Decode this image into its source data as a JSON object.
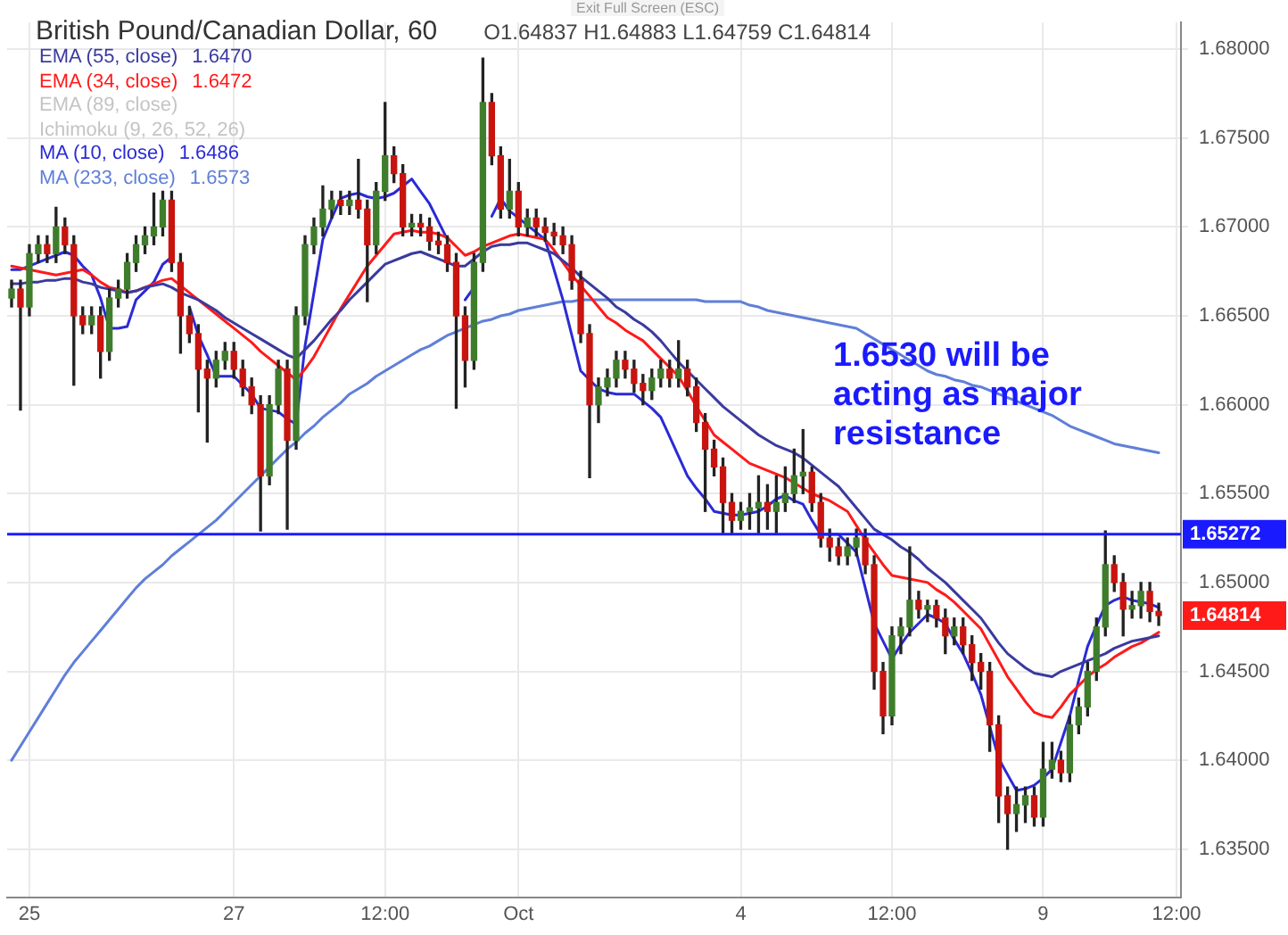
{
  "chart_data": {
    "type": "candlestick",
    "title": "British Pound/Canadian Dollar, 60",
    "subtitle": "O1.64837 H1.64883 L1.64759 C1.64814",
    "categories": [
      null,
      null,
      "25",
      null,
      null,
      null,
      null,
      null,
      null,
      null,
      null,
      null,
      null,
      null,
      null,
      null,
      null,
      null,
      null,
      null,
      null,
      null,
      null,
      null,
      null,
      "27",
      null,
      null,
      null,
      null,
      null,
      null,
      null,
      null,
      null,
      null,
      null,
      null,
      null,
      null,
      null,
      null,
      "12:00",
      null,
      null,
      null,
      null,
      null,
      null,
      null,
      null,
      null,
      null,
      null,
      null,
      null,
      null,
      "Oct",
      null,
      null,
      null,
      null,
      null,
      null,
      null,
      null,
      null,
      null,
      null,
      null,
      null,
      null,
      null,
      null,
      null,
      null,
      null,
      null,
      null,
      null,
      null,
      null,
      "4",
      null,
      null,
      null,
      null,
      null,
      null,
      null,
      null,
      null,
      null,
      null,
      null,
      null,
      null,
      null,
      null,
      "12:00",
      null,
      null,
      null,
      null,
      null,
      null,
      null,
      null,
      null,
      null,
      null,
      null,
      null,
      null,
      null,
      null,
      "9",
      null,
      null,
      null,
      null,
      null,
      null,
      null,
      null,
      null,
      null,
      null,
      null,
      null,
      null,
      "12:00"
    ],
    "ohlc": [
      [
        1.666,
        1.667,
        1.6655,
        1.6665
      ],
      [
        1.6665,
        1.667,
        1.6597,
        1.6655
      ],
      [
        1.6655,
        1.669,
        1.665,
        1.6685
      ],
      [
        1.6685,
        1.6695,
        1.668,
        1.669
      ],
      [
        1.669,
        1.6695,
        1.668,
        1.6685
      ],
      [
        1.6685,
        1.6711,
        1.668,
        1.67
      ],
      [
        1.67,
        1.6705,
        1.6685,
        1.669
      ],
      [
        1.669,
        1.6695,
        1.6611,
        1.665
      ],
      [
        1.665,
        1.6655,
        1.664,
        1.6645
      ],
      [
        1.6645,
        1.6655,
        1.664,
        1.665
      ],
      [
        1.665,
        1.6655,
        1.6615,
        1.663
      ],
      [
        1.663,
        1.6665,
        1.6625,
        1.666
      ],
      [
        1.666,
        1.667,
        1.6655,
        1.6665
      ],
      [
        1.6665,
        1.6685,
        1.666,
        1.668
      ],
      [
        1.668,
        1.6695,
        1.6675,
        1.669
      ],
      [
        1.669,
        1.67,
        1.6685,
        1.6695
      ],
      [
        1.6695,
        1.6719,
        1.669,
        1.67
      ],
      [
        1.67,
        1.672,
        1.6695,
        1.6715
      ],
      [
        1.6715,
        1.672,
        1.6675,
        1.668
      ],
      [
        1.668,
        1.6685,
        1.6629,
        1.665
      ],
      [
        1.665,
        1.6655,
        1.6635,
        1.664
      ],
      [
        1.664,
        1.6645,
        1.6596,
        1.662
      ],
      [
        1.662,
        1.6625,
        1.6579,
        1.6615
      ],
      [
        1.6615,
        1.663,
        1.661,
        1.6625
      ],
      [
        1.6625,
        1.6635,
        1.662,
        1.663
      ],
      [
        1.663,
        1.6635,
        1.6615,
        1.662
      ],
      [
        1.662,
        1.6625,
        1.6605,
        1.661
      ],
      [
        1.661,
        1.6615,
        1.6595,
        1.66
      ],
      [
        1.66,
        1.6605,
        1.6529,
        1.656
      ],
      [
        1.656,
        1.6605,
        1.6555,
        1.66
      ],
      [
        1.66,
        1.6625,
        1.6595,
        1.662
      ],
      [
        1.662,
        1.6625,
        1.653,
        1.658
      ],
      [
        1.658,
        1.6655,
        1.6575,
        1.665
      ],
      [
        1.665,
        1.6695,
        1.6645,
        1.669
      ],
      [
        1.669,
        1.6705,
        1.6685,
        1.67
      ],
      [
        1.67,
        1.6723,
        1.6695,
        1.671
      ],
      [
        1.671,
        1.672,
        1.6705,
        1.6715
      ],
      [
        1.6715,
        1.672,
        1.6707,
        1.6712
      ],
      [
        1.6712,
        1.672,
        1.6707,
        1.6715
      ],
      [
        1.6715,
        1.6738,
        1.6705,
        1.671
      ],
      [
        1.671,
        1.6715,
        1.6658,
        1.669
      ],
      [
        1.669,
        1.6725,
        1.6685,
        1.672
      ],
      [
        1.672,
        1.677,
        1.6715,
        1.674
      ],
      [
        1.674,
        1.6745,
        1.6725,
        1.673
      ],
      [
        1.673,
        1.6735,
        1.6695,
        1.67
      ],
      [
        1.67,
        1.6707,
        1.6695,
        1.6702
      ],
      [
        1.6702,
        1.6707,
        1.6695,
        1.67
      ],
      [
        1.67,
        1.6705,
        1.6687,
        1.6692
      ],
      [
        1.6692,
        1.6697,
        1.6685,
        1.669
      ],
      [
        1.669,
        1.6695,
        1.6675,
        1.668
      ],
      [
        1.668,
        1.6685,
        1.6598,
        1.665
      ],
      [
        1.665,
        1.6655,
        1.661,
        1.6625
      ],
      [
        1.6625,
        1.6685,
        1.662,
        1.668
      ],
      [
        1.668,
        1.6795,
        1.6675,
        1.677
      ],
      [
        1.677,
        1.6775,
        1.6735,
        1.674
      ],
      [
        1.674,
        1.6745,
        1.6705,
        1.671
      ],
      [
        1.671,
        1.6738,
        1.6705,
        1.672
      ],
      [
        1.672,
        1.6725,
        1.6695,
        1.67
      ],
      [
        1.67,
        1.671,
        1.6695,
        1.6705
      ],
      [
        1.6705,
        1.671,
        1.6695,
        1.67
      ],
      [
        1.67,
        1.6705,
        1.6692,
        1.6697
      ],
      [
        1.6697,
        1.6702,
        1.669,
        1.6695
      ],
      [
        1.6695,
        1.67,
        1.6685,
        1.669
      ],
      [
        1.669,
        1.6695,
        1.6665,
        1.667
      ],
      [
        1.667,
        1.6675,
        1.6635,
        1.664
      ],
      [
        1.664,
        1.6645,
        1.6559,
        1.66
      ],
      [
        1.66,
        1.6615,
        1.659,
        1.661
      ],
      [
        1.661,
        1.662,
        1.6605,
        1.6615
      ],
      [
        1.6615,
        1.663,
        1.661,
        1.6625
      ],
      [
        1.6625,
        1.663,
        1.6615,
        1.662
      ],
      [
        1.662,
        1.6625,
        1.6607,
        1.6612
      ],
      [
        1.6612,
        1.6617,
        1.66,
        1.6608
      ],
      [
        1.6608,
        1.662,
        1.6603,
        1.6615
      ],
      [
        1.6615,
        1.6625,
        1.661,
        1.662
      ],
      [
        1.662,
        1.6625,
        1.661,
        1.6615
      ],
      [
        1.6615,
        1.6636,
        1.661,
        1.662
      ],
      [
        1.662,
        1.6625,
        1.6605,
        1.661
      ],
      [
        1.661,
        1.6615,
        1.6585,
        1.659
      ],
      [
        1.659,
        1.6595,
        1.654,
        1.6575
      ],
      [
        1.6575,
        1.658,
        1.656,
        1.6565
      ],
      [
        1.6565,
        1.657,
        1.6528,
        1.6545
      ],
      [
        1.6545,
        1.655,
        1.6528,
        1.6535
      ],
      [
        1.6535,
        1.6545,
        1.653,
        1.654
      ],
      [
        1.654,
        1.655,
        1.653,
        1.6542
      ],
      [
        1.6542,
        1.656,
        1.6528,
        1.6545
      ],
      [
        1.6545,
        1.6555,
        1.653,
        1.654
      ],
      [
        1.654,
        1.656,
        1.6528,
        1.6545
      ],
      [
        1.6545,
        1.6565,
        1.654,
        1.655
      ],
      [
        1.655,
        1.6575,
        1.6545,
        1.656
      ],
      [
        1.656,
        1.6586,
        1.655,
        1.6562
      ],
      [
        1.6562,
        1.6565,
        1.654,
        1.6545
      ],
      [
        1.6545,
        1.655,
        1.652,
        1.6525
      ],
      [
        1.6525,
        1.653,
        1.6512,
        1.652
      ],
      [
        1.652,
        1.6525,
        1.651,
        1.6515
      ],
      [
        1.6515,
        1.6525,
        1.651,
        1.652
      ],
      [
        1.652,
        1.653,
        1.6515,
        1.6525
      ],
      [
        1.6525,
        1.653,
        1.6505,
        1.651
      ],
      [
        1.651,
        1.6515,
        1.644,
        1.645
      ],
      [
        1.645,
        1.6455,
        1.6415,
        1.6425
      ],
      [
        1.6425,
        1.6475,
        1.642,
        1.647
      ],
      [
        1.647,
        1.648,
        1.646,
        1.6475
      ],
      [
        1.6475,
        1.652,
        1.647,
        1.649
      ],
      [
        1.649,
        1.6495,
        1.648,
        1.6485
      ],
      [
        1.6485,
        1.649,
        1.6478,
        1.6487
      ],
      [
        1.6487,
        1.649,
        1.6475,
        1.648
      ],
      [
        1.648,
        1.6485,
        1.646,
        1.647
      ],
      [
        1.647,
        1.648,
        1.6465,
        1.6475
      ],
      [
        1.6475,
        1.648,
        1.646,
        1.6465
      ],
      [
        1.6465,
        1.647,
        1.6445,
        1.6455
      ],
      [
        1.6455,
        1.646,
        1.644,
        1.645
      ],
      [
        1.645,
        1.6455,
        1.6405,
        1.642
      ],
      [
        1.642,
        1.6425,
        1.6365,
        1.638
      ],
      [
        1.638,
        1.6385,
        1.635,
        1.637
      ],
      [
        1.637,
        1.6385,
        1.636,
        1.6375
      ],
      [
        1.6375,
        1.6385,
        1.6365,
        1.638
      ],
      [
        1.638,
        1.6385,
        1.6363,
        1.6368
      ],
      [
        1.6368,
        1.641,
        1.6363,
        1.6395
      ],
      [
        1.6395,
        1.641,
        1.639,
        1.64
      ],
      [
        1.64,
        1.6405,
        1.6388,
        1.6393
      ],
      [
        1.6393,
        1.6425,
        1.6388,
        1.642
      ],
      [
        1.642,
        1.6435,
        1.6415,
        1.643
      ],
      [
        1.643,
        1.6455,
        1.6425,
        1.645
      ],
      [
        1.645,
        1.648,
        1.6445,
        1.6475
      ],
      [
        1.6475,
        1.6529,
        1.647,
        1.651
      ],
      [
        1.651,
        1.6515,
        1.6495,
        1.65
      ],
      [
        1.65,
        1.6505,
        1.647,
        1.6485
      ],
      [
        1.6485,
        1.6495,
        1.648,
        1.6487
      ],
      [
        1.6487,
        1.65,
        1.648,
        1.6495
      ],
      [
        1.6495,
        1.65,
        1.6478,
        1.64837
      ],
      [
        1.64837,
        1.64883,
        1.64759,
        1.64814
      ],
      null,
      null
    ],
    "series": [
      {
        "name": "EMA (55, close)",
        "color": "#3a3a9e",
        "type": "line",
        "values": [
          1.6668,
          1.6668,
          1.6669,
          1.6669,
          1.667,
          1.667,
          1.6671,
          1.6671,
          1.6669,
          1.6668,
          1.6666,
          1.6665,
          1.6664,
          1.6663,
          1.6664,
          1.6666,
          1.6667,
          1.6668,
          1.6666,
          1.6663,
          1.6661,
          1.6659,
          1.6656,
          1.6653,
          1.6649,
          1.6646,
          1.6643,
          1.664,
          1.6637,
          1.6634,
          1.6631,
          1.6628,
          1.6626,
          1.6631,
          1.6636,
          1.6642,
          1.6648,
          1.6653,
          1.6659,
          1.6664,
          1.6669,
          1.6674,
          1.6679,
          1.6681,
          1.6683,
          1.6685,
          1.6686,
          1.6684,
          1.6682,
          1.668,
          1.6678,
          1.6678,
          1.6682,
          1.6686,
          1.6689,
          1.669,
          1.669,
          1.6691,
          1.6691,
          1.6689,
          1.6687,
          1.6685,
          1.6681,
          1.6677,
          1.6672,
          1.6668,
          1.6664,
          1.666,
          1.6655,
          1.6652,
          1.6648,
          1.6645,
          1.6641,
          1.6636,
          1.663,
          1.6624,
          1.6619,
          1.6614,
          1.6609,
          1.6604,
          1.6599,
          1.6595,
          1.6591,
          1.6587,
          1.6583,
          1.658,
          1.6577,
          1.6575,
          1.6573,
          1.657,
          1.6566,
          1.6562,
          1.6558,
          1.6554,
          1.6548,
          1.6542,
          1.6536,
          1.653,
          1.6527,
          1.6524,
          1.652,
          1.6517,
          1.6513,
          1.6508,
          1.6504,
          1.65,
          1.6495,
          1.649,
          1.6485,
          1.648,
          1.6473,
          1.6466,
          1.646,
          1.6456,
          1.6452,
          1.6449,
          1.6448,
          1.6447,
          1.645,
          1.6452,
          1.6454,
          1.6456,
          1.6458,
          1.646,
          1.6463,
          1.6465,
          1.6467,
          1.6468,
          1.6469,
          1.647,
          null,
          null
        ]
      },
      {
        "name": "EMA (34, close)",
        "color": "#ff1a1a",
        "type": "line",
        "values": [
          1.6678,
          1.6677,
          1.6676,
          1.6675,
          1.6674,
          1.6673,
          1.6674,
          1.6675,
          1.6676,
          1.6673,
          1.6669,
          1.6666,
          1.6665,
          1.6663,
          1.6664,
          1.6666,
          1.6668,
          1.667,
          1.6671,
          1.6667,
          1.6663,
          1.6659,
          1.6655,
          1.6651,
          1.6647,
          1.6643,
          1.6639,
          1.6635,
          1.663,
          1.6626,
          1.6622,
          1.6618,
          1.6614,
          1.662,
          1.6627,
          1.6636,
          1.6645,
          1.6654,
          1.6662,
          1.667,
          1.6678,
          1.6684,
          1.669,
          1.6696,
          1.6697,
          1.6698,
          1.6697,
          1.6697,
          1.6696,
          1.6694,
          1.6689,
          1.6684,
          1.6686,
          1.6689,
          1.6691,
          1.6693,
          1.6695,
          1.6696,
          1.6695,
          1.6694,
          1.6693,
          1.6687,
          1.668,
          1.6673,
          1.6667,
          1.6661,
          1.6655,
          1.6649,
          1.6646,
          1.6642,
          1.6639,
          1.6636,
          1.6631,
          1.6626,
          1.6621,
          1.6616,
          1.6608,
          1.6599,
          1.6591,
          1.6583,
          1.6579,
          1.6575,
          1.6571,
          1.6567,
          1.6565,
          1.6563,
          1.6561,
          1.6559,
          1.6556,
          1.6553,
          1.655,
          1.6548,
          1.6546,
          1.6543,
          1.654,
          1.6532,
          1.6524,
          1.6517,
          1.651,
          1.6504,
          1.6503,
          1.6502,
          1.6501,
          1.65,
          1.6496,
          1.6493,
          1.6489,
          1.6484,
          1.6479,
          1.6474,
          1.6465,
          1.6456,
          1.6447,
          1.644,
          1.6433,
          1.6427,
          1.6425,
          1.6424,
          1.643,
          1.6437,
          1.6442,
          1.6447,
          1.6451,
          1.6454,
          1.6458,
          1.6461,
          1.6464,
          1.6466,
          1.6469,
          1.6472,
          null,
          null
        ]
      },
      {
        "name": "MA (10, close)",
        "color": "#2a2ad6",
        "type": "line",
        "values": [
          1.6676,
          1.6676,
          1.6678,
          1.668,
          1.6682,
          1.6684,
          1.6686,
          1.6684,
          1.6678,
          1.6673,
          1.666,
          1.6643,
          1.6643,
          1.6644,
          1.6659,
          1.6664,
          1.6669,
          1.6679,
          1.6683,
          null,
          1.6655,
          1.6639,
          1.6628,
          1.6616,
          1.6616,
          1.6616,
          1.6611,
          1.6606,
          1.6598,
          1.6597,
          1.6596,
          1.6592,
          1.6589,
          1.6633,
          1.6663,
          1.6693,
          1.6705,
          1.6716,
          1.6718,
          1.6719,
          1.6717,
          1.6716,
          1.6717,
          1.6719,
          1.6723,
          1.6727,
          1.672,
          1.6713,
          1.6703,
          1.6693,
          null,
          1.6659,
          1.6666,
          null,
          1.6706,
          1.6716,
          1.6709,
          1.6705,
          1.6701,
          1.6697,
          1.6693,
          1.6676,
          1.6659,
          1.6639,
          1.6619,
          1.6614,
          1.6609,
          1.6607,
          1.6606,
          1.6606,
          1.6606,
          1.6602,
          1.6598,
          1.6593,
          1.6582,
          1.6571,
          1.656,
          1.6553,
          1.6547,
          1.654,
          1.6539,
          1.6538,
          1.6538,
          1.6539,
          1.654,
          1.6543,
          1.6547,
          1.6549,
          1.6546,
          1.6544,
          1.6535,
          1.6527,
          1.6527,
          1.6527,
          1.6522,
          1.6517,
          1.6497,
          1.6477,
          1.6467,
          1.6457,
          1.6465,
          1.6472,
          1.6477,
          1.6482,
          1.648,
          1.6477,
          1.6468,
          1.646,
          1.6449,
          1.6437,
          1.6419,
          1.6401,
          1.6392,
          1.6383,
          1.6384,
          1.6386,
          1.639,
          1.6395,
          1.641,
          1.6425,
          1.6445,
          1.6464,
          1.6476,
          1.6487,
          1.649,
          1.6492,
          1.649,
          1.6489,
          1.6488,
          1.6486,
          null,
          null
        ]
      },
      {
        "name": "MA (233, close)",
        "color": "#5f7fd8",
        "type": "line",
        "values": [
          1.64,
          1.6408,
          1.6416,
          1.6424,
          1.6432,
          1.644,
          1.6448,
          1.6455,
          1.6461,
          1.6467,
          1.6473,
          1.6479,
          1.6485,
          1.6491,
          1.6497,
          1.6502,
          1.6506,
          1.651,
          1.6515,
          1.6519,
          1.6523,
          1.6527,
          1.6531,
          1.6535,
          1.654,
          1.6545,
          1.655,
          1.6555,
          1.656,
          1.6565,
          1.657,
          1.6575,
          1.6579,
          1.6584,
          1.6588,
          1.6593,
          1.6597,
          1.6601,
          1.6606,
          1.6609,
          1.6612,
          1.6616,
          1.6619,
          1.6622,
          1.6625,
          1.6628,
          1.6631,
          1.6633,
          1.6636,
          1.6639,
          1.6641,
          1.6643,
          1.6645,
          1.6647,
          1.6648,
          1.665,
          1.6651,
          1.6653,
          1.6654,
          1.6655,
          1.6656,
          1.6657,
          1.6658,
          1.6658,
          1.6659,
          1.6659,
          1.6659,
          1.6659,
          1.6659,
          1.6659,
          1.6659,
          1.6659,
          1.6659,
          1.6659,
          1.6659,
          1.6659,
          1.6659,
          1.6659,
          1.6658,
          1.6658,
          1.6658,
          1.6658,
          1.6658,
          1.6656,
          1.6655,
          1.6653,
          1.6652,
          1.6651,
          1.665,
          1.6649,
          1.6648,
          1.6647,
          1.6646,
          1.6645,
          1.6644,
          1.6643,
          1.664,
          1.6637,
          1.6634,
          1.6631,
          1.6628,
          1.6625,
          1.6622,
          1.6619,
          1.6617,
          1.6616,
          1.6614,
          1.6613,
          1.6611,
          1.661,
          1.6608,
          1.6606,
          1.6604,
          1.6602,
          1.66,
          1.6598,
          1.6596,
          1.6594,
          1.6591,
          1.6588,
          1.6586,
          1.6584,
          1.6582,
          1.658,
          1.6578,
          1.6577,
          1.6576,
          1.6575,
          1.6574,
          1.6573,
          null,
          null
        ]
      }
    ],
    "ylim": [
      1.6323,
      1.6815
    ],
    "yticks": [
      {
        "value": 1.635,
        "label": "1.63500"
      },
      {
        "value": 1.64,
        "label": "1.64000"
      },
      {
        "value": 1.645,
        "label": "1.64500"
      },
      {
        "value": 1.65,
        "label": "1.65000"
      },
      {
        "value": 1.655,
        "label": "1.65500"
      },
      {
        "value": 1.66,
        "label": "1.66000"
      },
      {
        "value": 1.665,
        "label": "1.66500"
      },
      {
        "value": 1.67,
        "label": "1.67000"
      },
      {
        "value": 1.675,
        "label": "1.67500"
      },
      {
        "value": 1.68,
        "label": "1.68000"
      }
    ],
    "ref_lines": [
      {
        "axis": "y",
        "value": 1.65272,
        "label": "1.65272",
        "color": "#1a1aff"
      }
    ],
    "annotations": [
      "1.6530 will be acting as major resistance",
      "Exit Full Screen (ESC)",
      "EMA (89, close)",
      "Ichimoku (9, 26, 52, 26)",
      "1.6470",
      "1.6472",
      "1.6486",
      "1.6573",
      "1.64814"
    ],
    "grid": true,
    "legend": "top left",
    "marker": "none"
  }
}
